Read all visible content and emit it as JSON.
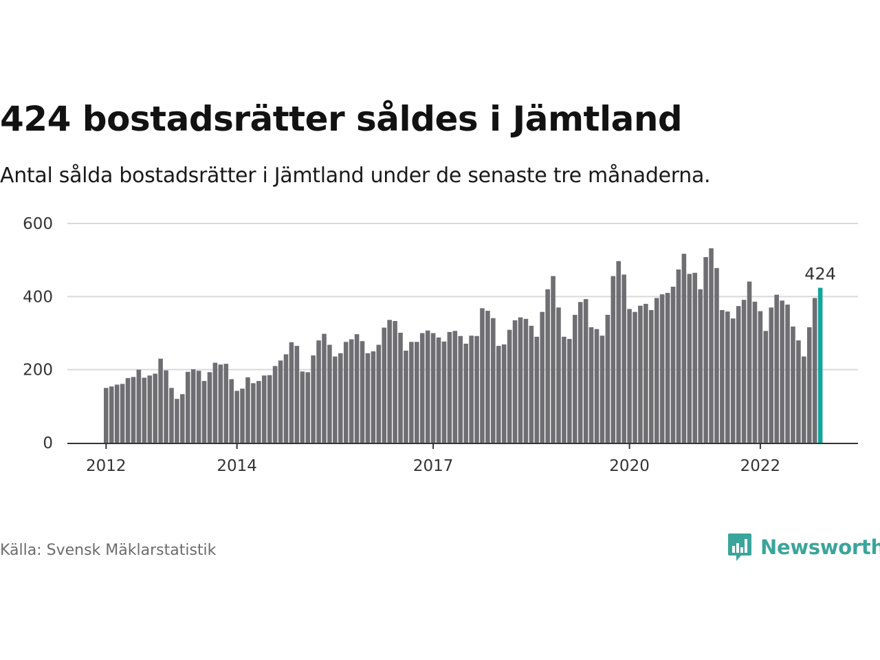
{
  "header": {
    "title": "424 bostadsrätter såldes i Jämtland",
    "subtitle": "Antal sålda bostadsrätter i Jämtland under de senaste tre månaderna."
  },
  "footer": {
    "source": "Källa: Svensk Mäklarstatistik",
    "brand": "Newsworthy",
    "brand_icon": "bar-chart-bubble-icon"
  },
  "colors": {
    "bar": "#6f6e73",
    "highlight": "#12a59b",
    "grid": "#d9d9d9",
    "axis": "#333333",
    "brand": "#3aa59b"
  },
  "chart_data": {
    "type": "bar",
    "start": "2012-01",
    "interval": "month",
    "ylim": [
      0,
      600
    ],
    "yticks": [
      0,
      200,
      400,
      600
    ],
    "xticks": [
      "2012",
      "2014",
      "2017",
      "2020",
      "2022"
    ],
    "grid": true,
    "highlight_label": "424",
    "values": [
      150,
      154,
      159,
      161,
      177,
      180,
      200,
      178,
      184,
      189,
      230,
      198,
      150,
      120,
      133,
      194,
      201,
      197,
      169,
      193,
      219,
      214,
      216,
      174,
      142,
      148,
      179,
      163,
      169,
      184,
      185,
      210,
      225,
      242,
      275,
      265,
      195,
      193,
      239,
      280,
      298,
      268,
      236,
      245,
      276,
      283,
      297,
      278,
      245,
      250,
      268,
      315,
      336,
      333,
      301,
      252,
      276,
      276,
      300,
      307,
      300,
      288,
      277,
      303,
      306,
      292,
      271,
      293,
      292,
      368,
      361,
      341,
      265,
      269,
      309,
      335,
      343,
      339,
      320,
      290,
      358,
      420,
      456,
      370,
      290,
      284,
      350,
      385,
      393,
      316,
      311,
      293,
      350,
      456,
      497,
      460,
      366,
      358,
      375,
      380,
      363,
      396,
      406,
      410,
      427,
      474,
      517,
      462,
      465,
      420,
      508,
      532,
      478,
      363,
      359,
      340,
      374,
      391,
      441,
      386,
      360,
      306,
      370,
      405,
      389,
      378,
      318,
      280,
      236,
      316,
      396,
      424
    ]
  }
}
